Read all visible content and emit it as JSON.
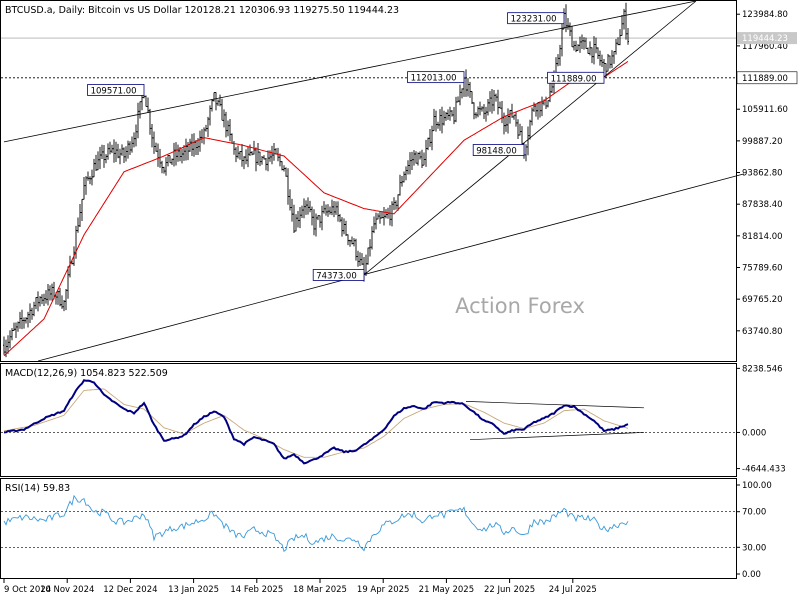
{
  "header": {
    "title": "BTCUSD.a, Daily:  Bitcoin vs US Dollar  120128.21 120306.93 119275.50 119444.23"
  },
  "watermark": "Action Forex",
  "colors": {
    "bull": "#000000",
    "bear": "#000000",
    "ma": "#e00000",
    "macd": "#000080",
    "signal": "#c8a87a",
    "rsi": "#3a9ad9",
    "trend": "#000000",
    "box_border": "#000080",
    "grid_dotted": "#000000"
  },
  "chart_data": [
    {
      "type": "candlestick",
      "panel": "price",
      "ylim": [
        58000,
        126500
      ],
      "y_ticks": [
        "123984.80",
        "117960.40",
        "111889.00",
        "105911.60",
        "99887.20",
        "93862.80",
        "87838.40",
        "81814.00",
        "75789.60",
        "69765.20",
        "63740.80"
      ],
      "x_ticks": [
        "9 Oct 2024",
        "10 Nov 2024",
        "12 Dec 2024",
        "13 Jan 2025",
        "14 Feb 2025",
        "18 Mar 2025",
        "19 Apr 2025",
        "21 May 2025",
        "22 Jun 2025",
        "24 Jul 2025"
      ],
      "current_price": {
        "value": 119444.23,
        "label": "119444.23"
      },
      "horizontal_level": {
        "value": 111889.0,
        "label": "111889.00"
      },
      "anchors": [
        [
          0,
          61000
        ],
        [
          6,
          64000
        ],
        [
          12,
          67000
        ],
        [
          18,
          70000
        ],
        [
          25,
          71000
        ],
        [
          30,
          69000
        ],
        [
          35,
          80000
        ],
        [
          40,
          91000
        ],
        [
          45,
          95000
        ],
        [
          50,
          97000
        ],
        [
          55,
          98000
        ],
        [
          60,
          97000
        ],
        [
          65,
          101000
        ],
        [
          70,
          109571
        ],
        [
          75,
          99000
        ],
        [
          80,
          95000
        ],
        [
          85,
          97000
        ],
        [
          90,
          97500
        ],
        [
          95,
          99000
        ],
        [
          100,
          101000
        ],
        [
          105,
          108000
        ],
        [
          110,
          104000
        ],
        [
          115,
          98000
        ],
        [
          120,
          96000
        ],
        [
          125,
          97000
        ],
        [
          130,
          96500
        ],
        [
          135,
          97000
        ],
        [
          140,
          95000
        ],
        [
          145,
          84000
        ],
        [
          150,
          88000
        ],
        [
          155,
          84000
        ],
        [
          160,
          86000
        ],
        [
          165,
          87000
        ],
        [
          170,
          83000
        ],
        [
          175,
          80000
        ],
        [
          180,
          74373
        ],
        [
          185,
          84000
        ],
        [
          190,
          85000
        ],
        [
          195,
          87000
        ],
        [
          200,
          94000
        ],
        [
          205,
          97000
        ],
        [
          210,
          96000
        ],
        [
          215,
          104000
        ],
        [
          220,
          104000
        ],
        [
          225,
          104500
        ],
        [
          230,
          112013
        ],
        [
          235,
          106000
        ],
        [
          240,
          105000
        ],
        [
          245,
          108000
        ],
        [
          250,
          104000
        ],
        [
          255,
          105000
        ],
        [
          260,
          98148
        ],
        [
          265,
          107000
        ],
        [
          270,
          106500
        ],
        [
          275,
          111000
        ],
        [
          280,
          123231
        ],
        [
          285,
          118000
        ],
        [
          290,
          118000
        ],
        [
          295,
          117000
        ],
        [
          300,
          114000
        ],
        [
          305,
          116000
        ],
        [
          310,
          123500
        ],
        [
          312,
          119444
        ]
      ],
      "ma_anchors": [
        [
          0,
          59000
        ],
        [
          20,
          66000
        ],
        [
          40,
          82000
        ],
        [
          60,
          94000
        ],
        [
          80,
          97000
        ],
        [
          100,
          100500
        ],
        [
          120,
          99000
        ],
        [
          140,
          97000
        ],
        [
          160,
          90000
        ],
        [
          180,
          87000
        ],
        [
          195,
          86000
        ],
        [
          210,
          92000
        ],
        [
          230,
          100000
        ],
        [
          250,
          104500
        ],
        [
          270,
          107500
        ],
        [
          285,
          111500
        ],
        [
          300,
          112000
        ],
        [
          312,
          115000
        ]
      ],
      "annotations": [
        {
          "label": "109571.00",
          "value": 109571.0,
          "bar": 70,
          "side": "left"
        },
        {
          "label": "74373.00",
          "value": 74373.0,
          "bar": 180,
          "side": "left"
        },
        {
          "label": "112013.00",
          "value": 112013.0,
          "bar": 230,
          "side": "left"
        },
        {
          "label": "98148.00",
          "value": 98148.0,
          "bar": 260,
          "side": "left"
        },
        {
          "label": "111889.00",
          "value": 111889.0,
          "bar": 300,
          "side": "left"
        },
        {
          "label": "123231.00",
          "value": 123231.0,
          "bar": 280,
          "side": "left"
        }
      ],
      "trendlines": [
        {
          "name": "channel-upper",
          "p1": [
            0,
            99700
          ],
          "p2": [
            346,
            126500
          ]
        },
        {
          "name": "channel-lower",
          "p1": [
            17,
            58000
          ],
          "p2": [
            370,
            93600
          ]
        },
        {
          "name": "rising-support",
          "p1": [
            180,
            74373
          ],
          "p2": [
            346,
            126500
          ]
        }
      ]
    },
    {
      "type": "line",
      "panel": "macd",
      "label": "MACD(12,26,9) 1054.823 522.509",
      "ylim": [
        -5600,
        8800
      ],
      "y_ticks": [
        "8238.546",
        "0.000",
        "-4644.433"
      ],
      "zero_level": 0,
      "macd_anchors": [
        [
          0,
          0
        ],
        [
          10,
          400
        ],
        [
          20,
          1800
        ],
        [
          30,
          2800
        ],
        [
          35,
          5000
        ],
        [
          40,
          6700
        ],
        [
          45,
          6500
        ],
        [
          50,
          4800
        ],
        [
          55,
          3900
        ],
        [
          60,
          3000
        ],
        [
          65,
          2500
        ],
        [
          70,
          3800
        ],
        [
          75,
          1000
        ],
        [
          80,
          -1000
        ],
        [
          85,
          -800
        ],
        [
          90,
          -400
        ],
        [
          95,
          1000
        ],
        [
          100,
          2000
        ],
        [
          105,
          2700
        ],
        [
          110,
          2000
        ],
        [
          115,
          -800
        ],
        [
          120,
          -1500
        ],
        [
          125,
          -600
        ],
        [
          130,
          -1000
        ],
        [
          135,
          -1500
        ],
        [
          140,
          -3400
        ],
        [
          145,
          -2800
        ],
        [
          150,
          -3900
        ],
        [
          155,
          -3500
        ],
        [
          160,
          -2800
        ],
        [
          165,
          -2000
        ],
        [
          170,
          -2500
        ],
        [
          175,
          -2400
        ],
        [
          180,
          -1600
        ],
        [
          185,
          -700
        ],
        [
          190,
          400
        ],
        [
          195,
          2100
        ],
        [
          200,
          3100
        ],
        [
          205,
          3400
        ],
        [
          210,
          3000
        ],
        [
          215,
          3900
        ],
        [
          220,
          3800
        ],
        [
          225,
          3900
        ],
        [
          230,
          3600
        ],
        [
          235,
          2600
        ],
        [
          240,
          1500
        ],
        [
          245,
          1000
        ],
        [
          250,
          -200
        ],
        [
          255,
          300
        ],
        [
          260,
          400
        ],
        [
          265,
          1300
        ],
        [
          270,
          1800
        ],
        [
          275,
          2500
        ],
        [
          280,
          3500
        ],
        [
          285,
          3300
        ],
        [
          290,
          2400
        ],
        [
          295,
          1500
        ],
        [
          300,
          200
        ],
        [
          305,
          400
        ],
        [
          312,
          1055
        ]
      ],
      "signal_anchors": [
        [
          0,
          200
        ],
        [
          15,
          900
        ],
        [
          30,
          2200
        ],
        [
          40,
          5400
        ],
        [
          50,
          5600
        ],
        [
          60,
          3600
        ],
        [
          70,
          3000
        ],
        [
          80,
          600
        ],
        [
          90,
          -200
        ],
        [
          100,
          1200
        ],
        [
          110,
          2200
        ],
        [
          120,
          300
        ],
        [
          130,
          -800
        ],
        [
          140,
          -2200
        ],
        [
          150,
          -3200
        ],
        [
          160,
          -3200
        ],
        [
          170,
          -2500
        ],
        [
          180,
          -2000
        ],
        [
          190,
          -500
        ],
        [
          200,
          1800
        ],
        [
          210,
          3000
        ],
        [
          220,
          3600
        ],
        [
          230,
          3700
        ],
        [
          240,
          2600
        ],
        [
          250,
          1200
        ],
        [
          260,
          500
        ],
        [
          270,
          1200
        ],
        [
          280,
          2800
        ],
        [
          290,
          3000
        ],
        [
          300,
          1500
        ],
        [
          312,
          523
        ]
      ],
      "trendlines": [
        {
          "name": "macd-upper",
          "p1": [
            231,
            3990
          ],
          "p2": [
            320,
            3170
          ]
        },
        {
          "name": "macd-lower",
          "p1": [
            233,
            -930
          ],
          "p2": [
            320,
            0
          ]
        }
      ]
    },
    {
      "type": "line",
      "panel": "rsi",
      "label": "RSI(14) 59.83",
      "ylim": [
        0,
        100
      ],
      "y_ticks": [
        "100.00",
        "70.00",
        "30.00",
        "0.00"
      ],
      "levels": [
        70,
        30
      ],
      "rsi_anchors": [
        [
          0,
          58
        ],
        [
          10,
          64
        ],
        [
          20,
          60
        ],
        [
          30,
          68
        ],
        [
          35,
          85
        ],
        [
          40,
          84
        ],
        [
          45,
          70
        ],
        [
          50,
          69
        ],
        [
          55,
          60
        ],
        [
          60,
          58
        ],
        [
          65,
          62
        ],
        [
          70,
          68
        ],
        [
          75,
          42
        ],
        [
          80,
          47
        ],
        [
          85,
          52
        ],
        [
          90,
          54
        ],
        [
          95,
          58
        ],
        [
          100,
          62
        ],
        [
          105,
          68
        ],
        [
          110,
          55
        ],
        [
          115,
          45
        ],
        [
          120,
          42
        ],
        [
          125,
          50
        ],
        [
          130,
          47
        ],
        [
          135,
          42
        ],
        [
          140,
          28
        ],
        [
          145,
          40
        ],
        [
          150,
          43
        ],
        [
          155,
          35
        ],
        [
          160,
          40
        ],
        [
          165,
          43
        ],
        [
          170,
          38
        ],
        [
          175,
          40
        ],
        [
          180,
          30
        ],
        [
          185,
          45
        ],
        [
          190,
          55
        ],
        [
          195,
          60
        ],
        [
          200,
          66
        ],
        [
          205,
          67
        ],
        [
          210,
          58
        ],
        [
          215,
          68
        ],
        [
          220,
          66
        ],
        [
          225,
          70
        ],
        [
          230,
          72
        ],
        [
          235,
          55
        ],
        [
          240,
          50
        ],
        [
          245,
          56
        ],
        [
          250,
          47
        ],
        [
          255,
          52
        ],
        [
          260,
          42
        ],
        [
          265,
          60
        ],
        [
          270,
          58
        ],
        [
          275,
          64
        ],
        [
          280,
          72
        ],
        [
          285,
          62
        ],
        [
          290,
          63
        ],
        [
          295,
          60
        ],
        [
          300,
          50
        ],
        [
          305,
          54
        ],
        [
          312,
          60
        ]
      ]
    }
  ]
}
